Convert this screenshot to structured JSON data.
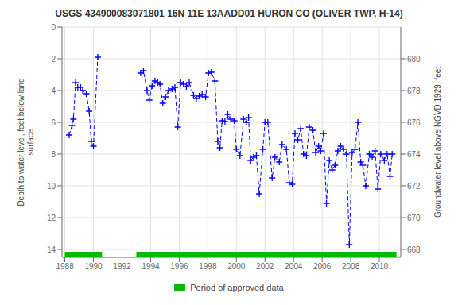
{
  "chart_data": {
    "type": "line",
    "title": "USGS 434900083071801 16N 11E 13AADD01 HURON CO (OLIVER TWP, H-14)",
    "ylabel": "Depth to water level, feet below land\nsurface",
    "y2label": "Groundwater level above NGVD 1929, feet",
    "x": [
      1988.3,
      1988.5,
      1988.6,
      1988.75,
      1988.9,
      1989.1,
      1989.25,
      1989.5,
      1989.7,
      1989.85,
      1990.0,
      1990.3,
      null,
      1993.3,
      1993.5,
      1993.75,
      1993.9,
      1994.1,
      1994.3,
      1994.5,
      1994.65,
      1994.85,
      1995.05,
      1995.25,
      1995.5,
      1995.7,
      1995.9,
      1996.1,
      1996.3,
      1996.5,
      1996.7,
      1997.0,
      1997.2,
      1997.4,
      1997.6,
      1997.85,
      1998.05,
      1998.25,
      1998.5,
      1998.7,
      1998.85,
      1999.0,
      1999.2,
      1999.4,
      1999.6,
      1999.85,
      2000.0,
      2000.25,
      2000.5,
      2000.7,
      2000.85,
      2001.0,
      2001.2,
      2001.4,
      2001.6,
      2001.85,
      2002.0,
      2002.2,
      2002.5,
      2002.7,
      2003.0,
      2003.2,
      2003.5,
      2003.7,
      2003.9,
      2004.1,
      2004.3,
      2004.5,
      2004.7,
      2004.9,
      2005.1,
      2005.35,
      2005.55,
      2005.75,
      2005.9,
      2006.1,
      2006.3,
      2006.5,
      2006.7,
      2006.9,
      2007.1,
      2007.3,
      2007.5,
      2007.7,
      2007.9,
      2008.1,
      2008.3,
      2008.5,
      2008.7,
      2008.85,
      2009.05,
      2009.3,
      2009.5,
      2009.7,
      2009.9,
      2010.1,
      2010.35,
      2010.55,
      2010.75,
      2010.9
    ],
    "values": [
      6.8,
      6.2,
      5.8,
      3.5,
      3.8,
      3.8,
      4.0,
      4.2,
      5.3,
      7.2,
      7.5,
      1.9,
      null,
      2.9,
      2.75,
      4.0,
      4.6,
      3.7,
      3.4,
      3.5,
      3.6,
      4.8,
      4.4,
      4.0,
      3.9,
      3.8,
      6.3,
      3.5,
      3.6,
      3.75,
      3.5,
      4.3,
      4.5,
      4.35,
      4.25,
      4.4,
      2.9,
      2.85,
      3.4,
      7.2,
      7.6,
      5.9,
      5.95,
      5.5,
      5.8,
      5.9,
      7.7,
      8.1,
      5.8,
      6.0,
      5.7,
      8.4,
      8.2,
      8.1,
      10.5,
      7.7,
      6.0,
      6.0,
      9.5,
      8.2,
      8.5,
      7.4,
      7.7,
      9.8,
      9.9,
      6.7,
      7.1,
      6.4,
      8.0,
      8.1,
      6.3,
      6.5,
      7.9,
      7.5,
      7.8,
      6.7,
      11.1,
      8.4,
      9.0,
      8.7,
      7.8,
      7.5,
      7.7,
      8.0,
      13.7,
      7.9,
      7.7,
      6.0,
      8.5,
      8.7,
      10.0,
      8.0,
      8.2,
      7.8,
      10.2,
      8.0,
      8.4,
      8.0,
      9.4,
      8.0
    ],
    "color": "#0000FF",
    "line_style": "dashed",
    "marker": "plus",
    "xlim": [
      1987.8,
      2011.5
    ],
    "xticks": [
      1988,
      1990,
      1992,
      1994,
      1996,
      1998,
      2000,
      2002,
      2004,
      2006,
      2008,
      2010
    ],
    "ylim": [
      14.5,
      0
    ],
    "yticks": [
      0,
      2,
      4,
      6,
      8,
      10,
      12,
      14
    ],
    "y2lim": [
      667.5,
      682
    ],
    "y2ticks": [
      668,
      670,
      672,
      674,
      676,
      678,
      680
    ],
    "grid": true,
    "legend": "bottom",
    "approved_periods": {
      "name": "Period of approved data",
      "color": "#00BB00",
      "segments": [
        [
          1988.0,
          1990.6
        ],
        [
          1993.0,
          2011.2
        ]
      ]
    }
  }
}
